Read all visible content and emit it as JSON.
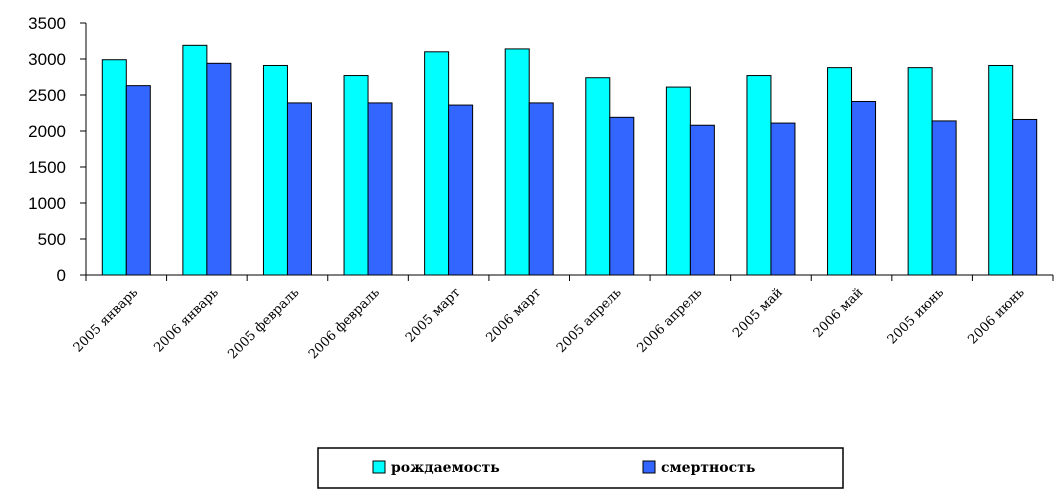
{
  "chart_data": {
    "type": "bar",
    "title": "",
    "xlabel": "",
    "ylabel": "",
    "ylim": [
      0,
      3500
    ],
    "yticks": [
      0,
      500,
      1000,
      1500,
      2000,
      2500,
      3000,
      3500
    ],
    "grid": false,
    "legend_position": "bottom",
    "categories": [
      "2005 январь",
      "2006 январь",
      "2005 февраль",
      "2006 февраль",
      "2005 март",
      "2006 март",
      "2005 апрель",
      "2006 апрель",
      "2005 май",
      "2006 май",
      "2005 июнь",
      "2006 июнь"
    ],
    "series": [
      {
        "name": "рождаемость",
        "color": "#00ffff",
        "values": [
          2990,
          3190,
          2910,
          2770,
          3100,
          3140,
          2740,
          2610,
          2770,
          2880,
          2880,
          2910
        ]
      },
      {
        "name": "смертность",
        "color": "#3366ff",
        "values": [
          2630,
          2940,
          2390,
          2390,
          2360,
          2390,
          2190,
          2080,
          2110,
          2410,
          2140,
          2160
        ]
      }
    ]
  }
}
